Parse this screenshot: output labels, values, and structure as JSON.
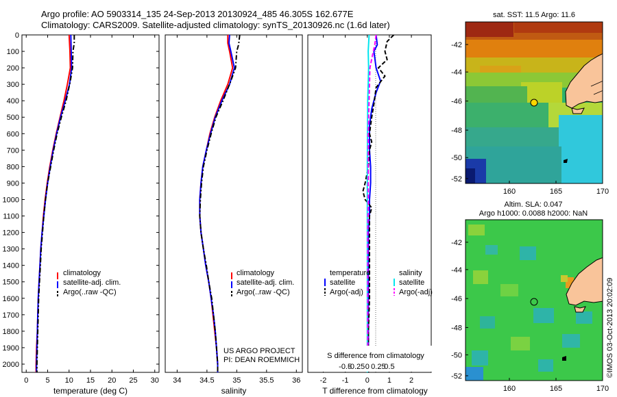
{
  "header": {
    "line1": "Argo profile: AO 5903314_135 24-Sep-2013 20130924_485 46.305S 162.677E",
    "line2": "Climatology: CARS2009. Satellite-adjusted climatology: synTS_20130926.nc (1.6d later)"
  },
  "colors": {
    "climatology": "#ff0000",
    "satellite": "#0000ff",
    "argo": "#000000",
    "satellite_salinity": "#00e5ee",
    "argo_salinity": "#ff00ff",
    "land": "#f9c49a"
  },
  "chart_data": [
    {
      "type": "line",
      "panel": "temperature",
      "xlabel": "temperature (deg C)",
      "xlim": [
        -1,
        31
      ],
      "xticks": [
        0,
        5,
        10,
        15,
        20,
        25,
        30
      ],
      "ylim": [
        0,
        2050
      ],
      "yticks": [
        0,
        100,
        200,
        300,
        400,
        500,
        600,
        700,
        800,
        900,
        1000,
        1100,
        1200,
        1300,
        1400,
        1500,
        1600,
        1700,
        1800,
        1900,
        2000
      ],
      "legend": [
        "climatology",
        "satellite-adj. clim.",
        "Argo(..raw -QC)"
      ],
      "series": [
        {
          "name": "climatology",
          "style": "solid",
          "color": "#ff0000",
          "points": [
            [
              10.0,
              0
            ],
            [
              10.2,
              100
            ],
            [
              10.3,
              200
            ],
            [
              9.6,
              300
            ],
            [
              8.8,
              400
            ],
            [
              7.9,
              500
            ],
            [
              7.0,
              600
            ],
            [
              6.2,
              700
            ],
            [
              5.5,
              800
            ],
            [
              4.9,
              900
            ],
            [
              4.4,
              1000
            ],
            [
              4.0,
              1100
            ],
            [
              3.7,
              1200
            ],
            [
              3.4,
              1300
            ],
            [
              3.2,
              1400
            ],
            [
              3.0,
              1500
            ],
            [
              2.8,
              1600
            ],
            [
              2.7,
              1700
            ],
            [
              2.6,
              1800
            ],
            [
              2.4,
              1900
            ],
            [
              2.3,
              2000
            ],
            [
              2.3,
              2050
            ]
          ]
        },
        {
          "name": "satellite-adj. clim.",
          "style": "solid",
          "color": "#0000ff",
          "points": [
            [
              10.4,
              0
            ],
            [
              10.5,
              100
            ],
            [
              10.6,
              200
            ],
            [
              10.1,
              300
            ],
            [
              9.1,
              400
            ],
            [
              8.0,
              500
            ],
            [
              7.1,
              600
            ],
            [
              6.3,
              700
            ],
            [
              5.6,
              800
            ],
            [
              5.0,
              900
            ],
            [
              4.5,
              1000
            ],
            [
              4.1,
              1100
            ],
            [
              3.7,
              1200
            ],
            [
              3.4,
              1300
            ],
            [
              3.2,
              1400
            ],
            [
              3.0,
              1500
            ],
            [
              2.8,
              1600
            ],
            [
              2.7,
              1700
            ],
            [
              2.6,
              1800
            ],
            [
              2.5,
              1900
            ],
            [
              2.4,
              2000
            ],
            [
              2.4,
              2050
            ]
          ]
        },
        {
          "name": "Argo(..raw -QC)",
          "style": "dashdot",
          "color": "#000000",
          "points": [
            [
              11.2,
              0
            ],
            [
              11.2,
              50
            ],
            [
              10.9,
              100
            ],
            [
              10.8,
              200
            ],
            [
              10.3,
              280
            ],
            [
              9.3,
              400
            ],
            [
              8.2,
              500
            ],
            [
              7.2,
              600
            ],
            [
              6.4,
              700
            ],
            [
              5.7,
              800
            ],
            [
              5.0,
              900
            ],
            [
              4.5,
              1000
            ],
            [
              4.1,
              1100
            ],
            [
              3.8,
              1200
            ],
            [
              3.5,
              1300
            ],
            [
              3.3,
              1400
            ],
            [
              3.1,
              1500
            ],
            [
              2.9,
              1600
            ],
            [
              2.8,
              1700
            ],
            [
              2.7,
              1800
            ],
            [
              2.6,
              1900
            ],
            [
              2.5,
              2000
            ],
            [
              2.5,
              2050
            ]
          ]
        }
      ]
    },
    {
      "type": "line",
      "panel": "salinity",
      "xlabel": "salinity",
      "xlim": [
        33.8,
        36.1
      ],
      "xticks": [
        34,
        34.5,
        35,
        35.5,
        36
      ],
      "ylim": [
        0,
        2050
      ],
      "legend": [
        "climatology",
        "satellite-adj. clim.",
        "Argo(..raw -QC)"
      ],
      "annotation": [
        "US ARGO PROJECT",
        "PI: DEAN ROEMMICH"
      ],
      "series": [
        {
          "name": "climatology",
          "style": "solid",
          "color": "#ff0000",
          "points": [
            [
              34.85,
              0
            ],
            [
              34.85,
              50
            ],
            [
              34.88,
              100
            ],
            [
              34.93,
              200
            ],
            [
              34.85,
              300
            ],
            [
              34.73,
              400
            ],
            [
              34.63,
              500
            ],
            [
              34.55,
              600
            ],
            [
              34.49,
              700
            ],
            [
              34.43,
              800
            ],
            [
              34.4,
              900
            ],
            [
              34.38,
              1000
            ],
            [
              34.38,
              1100
            ],
            [
              34.4,
              1200
            ],
            [
              34.44,
              1300
            ],
            [
              34.48,
              1400
            ],
            [
              34.53,
              1500
            ],
            [
              34.57,
              1600
            ],
            [
              34.6,
              1700
            ],
            [
              34.63,
              1800
            ],
            [
              34.66,
              1900
            ],
            [
              34.68,
              2000
            ],
            [
              34.68,
              2050
            ]
          ]
        },
        {
          "name": "satellite-adj. clim.",
          "style": "solid",
          "color": "#0000ff",
          "points": [
            [
              34.88,
              0
            ],
            [
              34.87,
              50
            ],
            [
              34.9,
              100
            ],
            [
              34.96,
              200
            ],
            [
              34.88,
              300
            ],
            [
              34.75,
              400
            ],
            [
              34.64,
              500
            ],
            [
              34.56,
              600
            ],
            [
              34.49,
              700
            ],
            [
              34.43,
              800
            ],
            [
              34.4,
              900
            ],
            [
              34.38,
              1000
            ],
            [
              34.38,
              1100
            ],
            [
              34.4,
              1200
            ],
            [
              34.44,
              1300
            ],
            [
              34.48,
              1400
            ],
            [
              34.53,
              1500
            ],
            [
              34.57,
              1600
            ],
            [
              34.61,
              1700
            ],
            [
              34.64,
              1800
            ],
            [
              34.66,
              1900
            ],
            [
              34.68,
              2000
            ],
            [
              34.68,
              2050
            ]
          ]
        },
        {
          "name": "Argo(..raw -QC)",
          "style": "dashdot",
          "color": "#000000",
          "points": [
            [
              35.05,
              0
            ],
            [
              35.03,
              60
            ],
            [
              35.0,
              100
            ],
            [
              34.98,
              200
            ],
            [
              34.9,
              280
            ],
            [
              34.77,
              400
            ],
            [
              34.65,
              500
            ],
            [
              34.57,
              600
            ],
            [
              34.5,
              700
            ],
            [
              34.44,
              800
            ],
            [
              34.41,
              900
            ],
            [
              34.39,
              1000
            ],
            [
              34.38,
              1100
            ],
            [
              34.4,
              1200
            ],
            [
              34.44,
              1300
            ],
            [
              34.49,
              1400
            ],
            [
              34.53,
              1500
            ],
            [
              34.58,
              1600
            ],
            [
              34.61,
              1700
            ],
            [
              34.64,
              1800
            ],
            [
              34.66,
              1900
            ],
            [
              34.68,
              2000
            ],
            [
              34.68,
              2050
            ]
          ]
        }
      ]
    },
    {
      "type": "line",
      "panel": "difference",
      "xlabel": "T difference from climatology",
      "toplabel": "S difference from climatology",
      "xlim": [
        -2.7,
        2.9
      ],
      "xticks": [
        -2,
        -1,
        0,
        1,
        2
      ],
      "xticklabels": [
        "-2",
        "-1",
        "0",
        "1",
        "2"
      ],
      "sticks": [
        -0.5,
        -0.25,
        0,
        0.25,
        0.5
      ],
      "sticklabels": [
        "-0.5",
        "-0.25",
        "0",
        "0.25",
        "0.5"
      ],
      "legend_groups": [
        {
          "title": "temperature",
          "items": [
            "satellite",
            "Argo(-adj)"
          ]
        },
        {
          "title": "salinity",
          "items": [
            "satellite",
            "Argo(-adj)"
          ]
        }
      ],
      "series": [
        {
          "name": "temperature satellite",
          "style": "solid",
          "color": "#0000ff",
          "points": [
            [
              0.4,
              0
            ],
            [
              0.45,
              60
            ],
            [
              0.3,
              100
            ],
            [
              0.4,
              200
            ],
            [
              0.6,
              280
            ],
            [
              0.4,
              350
            ],
            [
              0.2,
              450
            ],
            [
              0.1,
              550
            ],
            [
              0.1,
              700
            ],
            [
              0.15,
              800
            ],
            [
              0.15,
              900
            ],
            [
              0.1,
              1000
            ],
            [
              0.1,
              1100
            ],
            [
              0.05,
              1200
            ],
            [
              0.05,
              1400
            ],
            [
              0.05,
              1600
            ],
            [
              0.05,
              1800
            ],
            [
              0.05,
              2000
            ],
            [
              0.05,
              2050
            ]
          ]
        },
        {
          "name": "temperature Argo(-adj)",
          "style": "dashed",
          "color": "#000000",
          "points": [
            [
              1.2,
              0
            ],
            [
              0.9,
              40
            ],
            [
              0.8,
              100
            ],
            [
              0.9,
              150
            ],
            [
              0.5,
              200
            ],
            [
              0.8,
              250
            ],
            [
              0.4,
              320
            ],
            [
              0.3,
              420
            ],
            [
              0.2,
              500
            ],
            [
              0.1,
              600
            ],
            [
              0.2,
              650
            ],
            [
              0.1,
              700
            ],
            [
              0.05,
              800
            ],
            [
              -0.1,
              900
            ],
            [
              -0.2,
              950
            ],
            [
              -0.1,
              1000
            ],
            [
              0.2,
              1050
            ],
            [
              0.1,
              1100
            ],
            [
              0.1,
              1200
            ],
            [
              0.1,
              1400
            ],
            [
              0.1,
              1600
            ],
            [
              0.05,
              1800
            ],
            [
              0.05,
              2000
            ],
            [
              0.05,
              2050
            ]
          ]
        },
        {
          "name": "salinity satellite",
          "style": "solid",
          "color": "#00e5ee",
          "points": [
            [
              0.04,
              0
            ],
            [
              0.02,
              100
            ],
            [
              0.03,
              200
            ],
            [
              0.02,
              300
            ],
            [
              0.01,
              400
            ],
            [
              0.005,
              600
            ],
            [
              0.0,
              800
            ],
            [
              0.0,
              1000
            ],
            [
              0.0,
              1200
            ],
            [
              0.0,
              1400
            ],
            [
              0.0,
              1600
            ],
            [
              0.0,
              1800
            ],
            [
              0.0,
              2000
            ],
            [
              0.0,
              2050
            ]
          ]
        },
        {
          "name": "salinity Argo(-adj)",
          "style": "dashed",
          "color": "#ff00ff",
          "points": [
            [
              0.2,
              0
            ],
            [
              0.17,
              60
            ],
            [
              0.12,
              120
            ],
            [
              0.06,
              200
            ],
            [
              0.05,
              300
            ],
            [
              0.04,
              400
            ],
            [
              0.03,
              500
            ],
            [
              0.02,
              600
            ],
            [
              0.02,
              800
            ],
            [
              0.02,
              1000
            ],
            [
              0.01,
              1200
            ],
            [
              0.01,
              1400
            ],
            [
              0.01,
              1600
            ],
            [
              0.01,
              1800
            ],
            [
              0.01,
              2000
            ],
            [
              0.01,
              2050
            ]
          ]
        }
      ]
    }
  ],
  "maps": {
    "sst": {
      "title": "sat. SST: 11.5 Argo: 11.6",
      "yticks": [
        "-42",
        "-44",
        "-46",
        "-48",
        "-50",
        "-52"
      ],
      "xticks": [
        "160",
        "165",
        "170"
      ]
    },
    "sla": {
      "title1": "Altim. SLA: 0.047",
      "title2": "Argo h1000: 0.0088 h2000: NaN",
      "yticks": [
        "-42",
        "-44",
        "-46",
        "-48",
        "-50",
        "-52"
      ],
      "xticks": [
        "160",
        "165",
        "170"
      ]
    }
  },
  "watermark": "©IMOS 03-Oct-2013 20:02:09"
}
